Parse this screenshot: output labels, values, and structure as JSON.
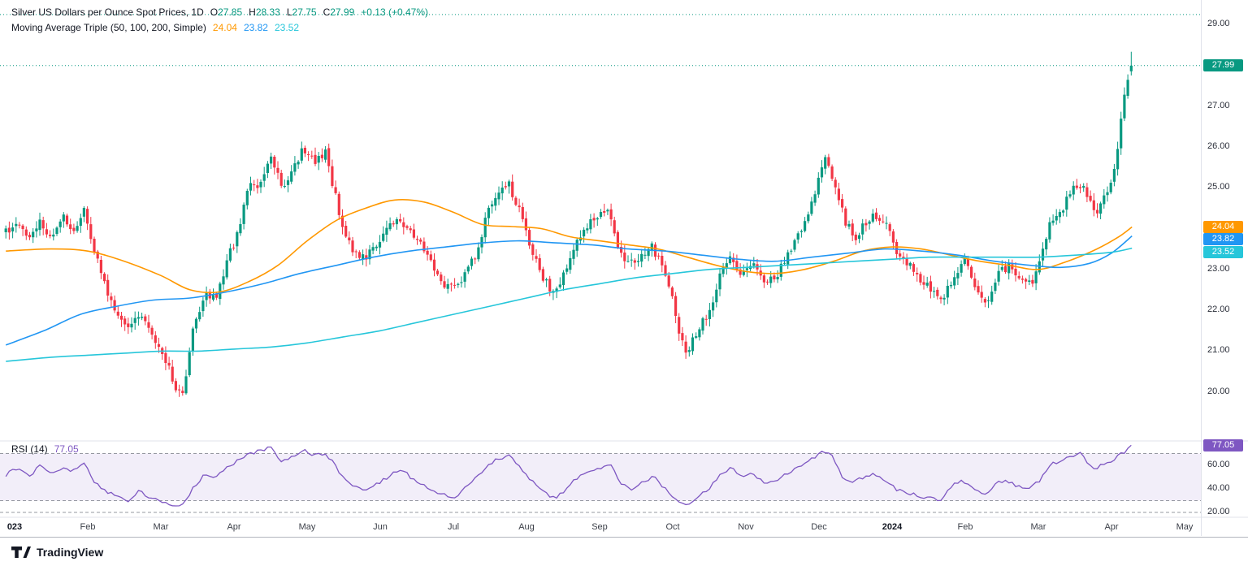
{
  "legend": {
    "title": "Silver US Dollars per Ounce Spot Prices, 1D",
    "ohlc_labels": {
      "o": "O",
      "h": "H",
      "l": "L",
      "c": "C"
    },
    "change": "+0.13 (+0.47%)",
    "ma_title": "Moving Average Triple (50, 100, 200, Simple)",
    "rsi_title": "RSI (14)"
  },
  "toolbar": {
    "brand": "TradingView"
  },
  "colors": {
    "up": "#089981",
    "down": "#f23645",
    "rsi": "#7e57c2",
    "rsi_band_fill": "rgba(126,87,194,0.10)",
    "rsi_band_line": "#9598a1",
    "separator": "#e0e3eb",
    "toolbar_border": "#b2b5be"
  },
  "chart_data": {
    "type": "candlestick",
    "title": "Silver US Dollars per Ounce Spot Prices",
    "interval": "1D",
    "last": {
      "open": 27.85,
      "high": 28.33,
      "low": 27.75,
      "close": 27.99
    },
    "upper_dotted_price": 29.24,
    "price_axis": {
      "min": 20,
      "max": 29,
      "ticks": [
        20,
        21,
        22,
        23,
        24,
        25,
        26,
        27,
        28,
        29
      ]
    },
    "time_axis": {
      "labels": [
        {
          "text": "023",
          "bold": true
        },
        {
          "text": "Feb",
          "bold": false
        },
        {
          "text": "Mar",
          "bold": false
        },
        {
          "text": "Apr",
          "bold": false
        },
        {
          "text": "May",
          "bold": false
        },
        {
          "text": "Jun",
          "bold": false
        },
        {
          "text": "Jul",
          "bold": false
        },
        {
          "text": "Aug",
          "bold": false
        },
        {
          "text": "Sep",
          "bold": false
        },
        {
          "text": "Oct",
          "bold": false
        },
        {
          "text": "Nov",
          "bold": false
        },
        {
          "text": "Dec",
          "bold": false
        },
        {
          "text": "2024",
          "bold": true
        },
        {
          "text": "Feb",
          "bold": false
        },
        {
          "text": "Mar",
          "bold": false
        },
        {
          "text": "Apr",
          "bold": false
        },
        {
          "text": "May",
          "bold": false
        }
      ]
    },
    "close_anchors": [
      [
        -0.12,
        23.9
      ],
      [
        0.05,
        24.1
      ],
      [
        0.2,
        23.7
      ],
      [
        0.35,
        24.2
      ],
      [
        0.5,
        23.8
      ],
      [
        0.65,
        24.3
      ],
      [
        0.8,
        24.0
      ],
      [
        0.95,
        24.4
      ],
      [
        1.1,
        23.4
      ],
      [
        1.25,
        22.5
      ],
      [
        1.4,
        21.9
      ],
      [
        1.55,
        21.6
      ],
      [
        1.7,
        21.9
      ],
      [
        1.85,
        21.5
      ],
      [
        2.0,
        21.0
      ],
      [
        2.1,
        20.6
      ],
      [
        2.2,
        20.1
      ],
      [
        2.3,
        20.0
      ],
      [
        2.45,
        21.6
      ],
      [
        2.6,
        22.4
      ],
      [
        2.75,
        22.3
      ],
      [
        2.9,
        23.2
      ],
      [
        3.05,
        23.9
      ],
      [
        3.2,
        25.0
      ],
      [
        3.35,
        25.1
      ],
      [
        3.5,
        25.9
      ],
      [
        3.65,
        25.0
      ],
      [
        3.8,
        25.4
      ],
      [
        3.95,
        26.0
      ],
      [
        4.1,
        25.6
      ],
      [
        4.25,
        25.9
      ],
      [
        4.35,
        25.1
      ],
      [
        4.5,
        23.9
      ],
      [
        4.65,
        23.4
      ],
      [
        4.8,
        23.3
      ],
      [
        4.95,
        23.6
      ],
      [
        5.1,
        24.0
      ],
      [
        5.25,
        24.3
      ],
      [
        5.4,
        23.9
      ],
      [
        5.55,
        23.7
      ],
      [
        5.7,
        23.1
      ],
      [
        5.85,
        22.7
      ],
      [
        6.0,
        22.5
      ],
      [
        6.15,
        22.9
      ],
      [
        6.3,
        23.3
      ],
      [
        6.45,
        24.3
      ],
      [
        6.6,
        24.9
      ],
      [
        6.75,
        25.1
      ],
      [
        6.9,
        24.5
      ],
      [
        7.05,
        23.6
      ],
      [
        7.2,
        22.9
      ],
      [
        7.35,
        22.4
      ],
      [
        7.5,
        22.8
      ],
      [
        7.65,
        23.6
      ],
      [
        7.8,
        24.0
      ],
      [
        7.95,
        24.3
      ],
      [
        8.1,
        24.5
      ],
      [
        8.25,
        23.5
      ],
      [
        8.4,
        23.1
      ],
      [
        8.55,
        23.3
      ],
      [
        8.7,
        23.6
      ],
      [
        8.85,
        23.1
      ],
      [
        9.0,
        22.3
      ],
      [
        9.1,
        21.3
      ],
      [
        9.2,
        20.95
      ],
      [
        9.35,
        21.6
      ],
      [
        9.5,
        21.9
      ],
      [
        9.65,
        22.9
      ],
      [
        9.8,
        23.3
      ],
      [
        9.95,
        22.9
      ],
      [
        10.1,
        23.2
      ],
      [
        10.25,
        22.6
      ],
      [
        10.4,
        22.8
      ],
      [
        10.55,
        23.3
      ],
      [
        10.7,
        23.8
      ],
      [
        10.85,
        24.3
      ],
      [
        11.0,
        25.3
      ],
      [
        11.1,
        25.8
      ],
      [
        11.2,
        25.2
      ],
      [
        11.35,
        24.2
      ],
      [
        11.5,
        23.8
      ],
      [
        11.65,
        24.2
      ],
      [
        11.8,
        24.3
      ],
      [
        11.95,
        24.0
      ],
      [
        12.1,
        23.3
      ],
      [
        12.25,
        23.1
      ],
      [
        12.4,
        22.7
      ],
      [
        12.55,
        22.5
      ],
      [
        12.7,
        22.3
      ],
      [
        12.85,
        22.9
      ],
      [
        13.0,
        23.2
      ],
      [
        13.15,
        22.6
      ],
      [
        13.3,
        22.2
      ],
      [
        13.45,
        22.9
      ],
      [
        13.6,
        23.1
      ],
      [
        13.75,
        22.8
      ],
      [
        13.9,
        22.6
      ],
      [
        14.0,
        23.0
      ],
      [
        14.15,
        24.1
      ],
      [
        14.3,
        24.4
      ],
      [
        14.45,
        24.9
      ],
      [
        14.6,
        25.1
      ],
      [
        14.7,
        24.7
      ],
      [
        14.8,
        24.4
      ],
      [
        14.9,
        24.8
      ],
      [
        15.0,
        25.1
      ],
      [
        15.08,
        26.0
      ],
      [
        15.16,
        27.0
      ],
      [
        15.22,
        27.6
      ],
      [
        15.27,
        27.99
      ]
    ],
    "series": [
      {
        "name": "MA50",
        "color": "#ff9800",
        "last": 24.04,
        "points": [
          [
            -0.12,
            23.45
          ],
          [
            0.5,
            23.5
          ],
          [
            1.0,
            23.45
          ],
          [
            1.5,
            23.2
          ],
          [
            2.0,
            22.85
          ],
          [
            2.4,
            22.5
          ],
          [
            2.8,
            22.45
          ],
          [
            3.2,
            22.7
          ],
          [
            3.6,
            23.1
          ],
          [
            4.0,
            23.7
          ],
          [
            4.4,
            24.2
          ],
          [
            4.8,
            24.5
          ],
          [
            5.2,
            24.7
          ],
          [
            5.6,
            24.65
          ],
          [
            6.0,
            24.4
          ],
          [
            6.4,
            24.1
          ],
          [
            6.8,
            24.05
          ],
          [
            7.2,
            24.0
          ],
          [
            7.6,
            23.8
          ],
          [
            8.0,
            23.7
          ],
          [
            8.4,
            23.6
          ],
          [
            8.8,
            23.5
          ],
          [
            9.2,
            23.3
          ],
          [
            9.6,
            23.1
          ],
          [
            10.0,
            22.95
          ],
          [
            10.4,
            22.9
          ],
          [
            10.8,
            23.0
          ],
          [
            11.2,
            23.2
          ],
          [
            11.6,
            23.45
          ],
          [
            12.0,
            23.55
          ],
          [
            12.4,
            23.5
          ],
          [
            12.8,
            23.35
          ],
          [
            13.2,
            23.2
          ],
          [
            13.6,
            23.1
          ],
          [
            14.0,
            23.0
          ],
          [
            14.4,
            23.2
          ],
          [
            14.8,
            23.5
          ],
          [
            15.1,
            23.8
          ],
          [
            15.28,
            24.04
          ]
        ]
      },
      {
        "name": "MA100",
        "color": "#2196f3",
        "last": 23.82,
        "points": [
          [
            -0.12,
            21.15
          ],
          [
            0.4,
            21.5
          ],
          [
            0.9,
            21.9
          ],
          [
            1.4,
            22.1
          ],
          [
            1.9,
            22.25
          ],
          [
            2.4,
            22.3
          ],
          [
            2.9,
            22.45
          ],
          [
            3.4,
            22.65
          ],
          [
            3.9,
            22.9
          ],
          [
            4.4,
            23.1
          ],
          [
            4.9,
            23.3
          ],
          [
            5.4,
            23.45
          ],
          [
            5.9,
            23.55
          ],
          [
            6.4,
            23.65
          ],
          [
            6.9,
            23.7
          ],
          [
            7.4,
            23.65
          ],
          [
            7.9,
            23.6
          ],
          [
            8.4,
            23.5
          ],
          [
            8.9,
            23.45
          ],
          [
            9.4,
            23.35
          ],
          [
            9.9,
            23.25
          ],
          [
            10.4,
            23.2
          ],
          [
            10.9,
            23.3
          ],
          [
            11.4,
            23.4
          ],
          [
            11.9,
            23.5
          ],
          [
            12.4,
            23.45
          ],
          [
            12.9,
            23.35
          ],
          [
            13.4,
            23.2
          ],
          [
            13.9,
            23.1
          ],
          [
            14.3,
            23.05
          ],
          [
            14.7,
            23.15
          ],
          [
            15.0,
            23.4
          ],
          [
            15.28,
            23.82
          ]
        ]
      },
      {
        "name": "MA200",
        "color": "#26c6da",
        "last": 23.52,
        "points": [
          [
            -0.12,
            20.75
          ],
          [
            0.5,
            20.85
          ],
          [
            1.0,
            20.9
          ],
          [
            1.5,
            20.95
          ],
          [
            2.0,
            21.0
          ],
          [
            2.5,
            21.0
          ],
          [
            3.0,
            21.05
          ],
          [
            3.5,
            21.1
          ],
          [
            4.0,
            21.2
          ],
          [
            4.5,
            21.35
          ],
          [
            5.0,
            21.5
          ],
          [
            5.5,
            21.7
          ],
          [
            6.0,
            21.9
          ],
          [
            6.5,
            22.1
          ],
          [
            7.0,
            22.3
          ],
          [
            7.5,
            22.5
          ],
          [
            8.0,
            22.65
          ],
          [
            8.5,
            22.8
          ],
          [
            9.0,
            22.9
          ],
          [
            9.5,
            23.0
          ],
          [
            10.0,
            23.05
          ],
          [
            10.5,
            23.1
          ],
          [
            11.0,
            23.15
          ],
          [
            11.5,
            23.2
          ],
          [
            12.0,
            23.25
          ],
          [
            12.5,
            23.3
          ],
          [
            13.0,
            23.3
          ],
          [
            13.5,
            23.3
          ],
          [
            14.0,
            23.3
          ],
          [
            14.5,
            23.35
          ],
          [
            15.0,
            23.42
          ],
          [
            15.28,
            23.52
          ]
        ]
      }
    ],
    "rsi": {
      "name": "RSI (14)",
      "last": 77.05,
      "bands": [
        30,
        70
      ],
      "dashed_levels": [
        70,
        30,
        20
      ],
      "ticks": [
        60,
        40,
        20
      ],
      "points": [
        [
          -0.12,
          52
        ],
        [
          0.05,
          58
        ],
        [
          0.2,
          50
        ],
        [
          0.35,
          60
        ],
        [
          0.5,
          52
        ],
        [
          0.65,
          58
        ],
        [
          0.8,
          55
        ],
        [
          0.95,
          62
        ],
        [
          1.1,
          45
        ],
        [
          1.25,
          38
        ],
        [
          1.4,
          33
        ],
        [
          1.55,
          30
        ],
        [
          1.7,
          38
        ],
        [
          1.85,
          33
        ],
        [
          2.0,
          30
        ],
        [
          2.15,
          27
        ],
        [
          2.3,
          26
        ],
        [
          2.45,
          42
        ],
        [
          2.6,
          52
        ],
        [
          2.75,
          50
        ],
        [
          2.9,
          58
        ],
        [
          3.05,
          64
        ],
        [
          3.2,
          70
        ],
        [
          3.35,
          72
        ],
        [
          3.5,
          75
        ],
        [
          3.65,
          62
        ],
        [
          3.8,
          68
        ],
        [
          3.95,
          73
        ],
        [
          4.1,
          68
        ],
        [
          4.25,
          71
        ],
        [
          4.4,
          58
        ],
        [
          4.55,
          45
        ],
        [
          4.7,
          40
        ],
        [
          4.85,
          40
        ],
        [
          5.0,
          46
        ],
        [
          5.15,
          52
        ],
        [
          5.3,
          56
        ],
        [
          5.45,
          48
        ],
        [
          5.6,
          44
        ],
        [
          5.75,
          37
        ],
        [
          5.9,
          34
        ],
        [
          6.05,
          33
        ],
        [
          6.2,
          44
        ],
        [
          6.35,
          52
        ],
        [
          6.5,
          62
        ],
        [
          6.65,
          66
        ],
        [
          6.8,
          68
        ],
        [
          6.95,
          54
        ],
        [
          7.1,
          46
        ],
        [
          7.25,
          36
        ],
        [
          7.4,
          32
        ],
        [
          7.55,
          40
        ],
        [
          7.7,
          50
        ],
        [
          7.85,
          55
        ],
        [
          8.0,
          58
        ],
        [
          8.15,
          60
        ],
        [
          8.3,
          44
        ],
        [
          8.45,
          40
        ],
        [
          8.6,
          46
        ],
        [
          8.75,
          50
        ],
        [
          8.9,
          40
        ],
        [
          9.05,
          30
        ],
        [
          9.2,
          26
        ],
        [
          9.35,
          34
        ],
        [
          9.5,
          40
        ],
        [
          9.65,
          52
        ],
        [
          9.8,
          58
        ],
        [
          9.95,
          50
        ],
        [
          10.1,
          53
        ],
        [
          10.25,
          44
        ],
        [
          10.4,
          47
        ],
        [
          10.55,
          52
        ],
        [
          10.7,
          58
        ],
        [
          10.85,
          63
        ],
        [
          11.0,
          70
        ],
        [
          11.15,
          72
        ],
        [
          11.3,
          52
        ],
        [
          11.45,
          44
        ],
        [
          11.6,
          50
        ],
        [
          11.75,
          52
        ],
        [
          11.9,
          48
        ],
        [
          12.05,
          40
        ],
        [
          12.2,
          37
        ],
        [
          12.35,
          34
        ],
        [
          12.5,
          32
        ],
        [
          12.65,
          30
        ],
        [
          12.8,
          42
        ],
        [
          12.95,
          48
        ],
        [
          13.1,
          40
        ],
        [
          13.25,
          34
        ],
        [
          13.4,
          44
        ],
        [
          13.55,
          48
        ],
        [
          13.7,
          42
        ],
        [
          13.85,
          40
        ],
        [
          14.0,
          46
        ],
        [
          14.15,
          60
        ],
        [
          14.3,
          64
        ],
        [
          14.45,
          68
        ],
        [
          14.6,
          70
        ],
        [
          14.7,
          60
        ],
        [
          14.8,
          57
        ],
        [
          14.9,
          62
        ],
        [
          15.0,
          64
        ],
        [
          15.1,
          68
        ],
        [
          15.2,
          72
        ],
        [
          15.27,
          77.05
        ]
      ]
    }
  }
}
